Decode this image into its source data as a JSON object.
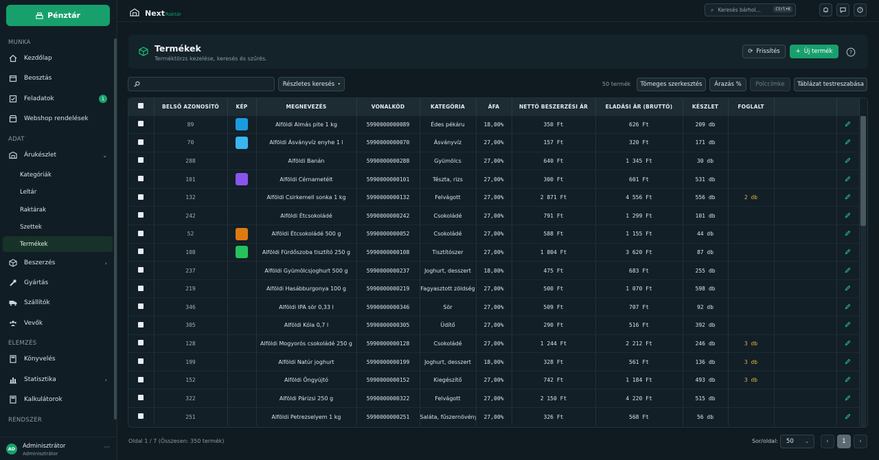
{
  "sidebar": {
    "kassza_label": "Pénztár",
    "sections": {
      "munka": "MUNKA",
      "adat": "ADAT",
      "elemzes": "ELEMZÉS",
      "rendszer": "RENDSZER"
    },
    "items": {
      "kezdolap": "Kezdőlap",
      "beosztas": "Beosztás",
      "feladatok": "Feladatok",
      "feladatok_badge": "1",
      "webshop": "Webshop rendelések",
      "arukeszlet": "Árukészlet",
      "kategoriak": "Kategóriák",
      "leltar": "Leltár",
      "raktarak": "Raktárak",
      "szettek": "Szettek",
      "termekek": "Termékek",
      "beszerzes": "Beszerzés",
      "gyartas": "Gyártás",
      "szallitok": "Szállítók",
      "vevok": "Vevők",
      "konyveles": "Könyvelés",
      "statisztika": "Statisztika",
      "kalkulatorok": "Kalkulátorok"
    },
    "user": {
      "name": "Adminisztrátor",
      "role": "Adminisztrátor",
      "initials": "AD"
    }
  },
  "topbar": {
    "logo_main": "Next",
    "logo_sub": "Raktár",
    "search_placeholder": "Keresés bárhol...",
    "search_shortcut": "Ctrl+K"
  },
  "page": {
    "title": "Termékek",
    "subtitle": "Terméktörzs kezelése, keresés és szűrés.",
    "refresh_label": "Frissítés",
    "new_label": "Új termék"
  },
  "filters": {
    "advanced_label": "Részletes keresés",
    "count_label": "50 termék",
    "bulk_edit": "Tömeges szerkesztés",
    "pricing": "Árazás %",
    "shelf_label": "Polccímke",
    "customize": "Táblázat testreszabása"
  },
  "table": {
    "headers": [
      "",
      "BELSŐ AZONOSÍTÓ",
      "KÉP",
      "MEGNEVEZÉS",
      "VONALKÓD",
      "KATEGÓRIA",
      "ÁFA",
      "NETTÓ BESZERZÉSI ÁR",
      "ELADÁSI ÁR (BRUTTÓ)",
      "KÉSZLET",
      "FOGLALT",
      ""
    ],
    "rows": [
      {
        "id": "89",
        "color": "#1a9be0",
        "name": "Alföldi Almás pite 1 kg",
        "barcode": "5990000000089",
        "category": "Édes pékáru",
        "vat": "18,00%",
        "net": "350 Ft",
        "gross": "626 Ft",
        "stock": "209 db",
        "reserved": ""
      },
      {
        "id": "70",
        "color": "#3bb5ef",
        "name": "Alföldi Ásványvíz enyhe 1 l",
        "barcode": "5990000000070",
        "category": "Ásványvíz",
        "vat": "27,00%",
        "net": "157 Ft",
        "gross": "320 Ft",
        "stock": "171 db",
        "reserved": ""
      },
      {
        "id": "288",
        "color": "",
        "name": "Alföldi Banán",
        "barcode": "5990000000288",
        "category": "Gyümölcs",
        "vat": "27,00%",
        "net": "640 Ft",
        "gross": "1 345 Ft",
        "stock": "30 db",
        "reserved": ""
      },
      {
        "id": "101",
        "color": "#8a55ee",
        "name": "Alföldi Cérnametélt",
        "barcode": "5990000000101",
        "category": "Tészta, rizs",
        "vat": "27,00%",
        "net": "300 Ft",
        "gross": "601 Ft",
        "stock": "531 db",
        "reserved": ""
      },
      {
        "id": "132",
        "color": "",
        "name": "Alföldi Csirkemell sonka 1 kg",
        "barcode": "5990000000132",
        "category": "Felvágott",
        "vat": "27,00%",
        "net": "2 871 Ft",
        "gross": "4 556 Ft",
        "stock": "556 db",
        "reserved": "2 db"
      },
      {
        "id": "242",
        "color": "",
        "name": "Alföldi Étcsokoládé",
        "barcode": "5990000000242",
        "category": "Csokoládé",
        "vat": "27,00%",
        "net": "791 Ft",
        "gross": "1 299 Ft",
        "stock": "101 db",
        "reserved": ""
      },
      {
        "id": "52",
        "color": "#df7a12",
        "name": "Alföldi Étcsokoládé 500 g",
        "barcode": "5990000000052",
        "category": "Csokoládé",
        "vat": "27,00%",
        "net": "588 Ft",
        "gross": "1 155 Ft",
        "stock": "44 db",
        "reserved": ""
      },
      {
        "id": "108",
        "color": "#25c25b",
        "name": "Alföldi Fürdőszoba tisztító 250 g",
        "barcode": "5990000000108",
        "category": "Tisztítószer",
        "vat": "27,00%",
        "net": "1 804 Ft",
        "gross": "3 620 Ft",
        "stock": "87 db",
        "reserved": ""
      },
      {
        "id": "237",
        "color": "",
        "name": "Alföldi Gyümölcsjoghurt 500 g",
        "barcode": "5990000000237",
        "category": "Joghurt, desszert",
        "vat": "18,00%",
        "net": "475 Ft",
        "gross": "683 Ft",
        "stock": "255 db",
        "reserved": ""
      },
      {
        "id": "219",
        "color": "",
        "name": "Alföldi Hasábburgonya 100 g",
        "barcode": "5990000000219",
        "category": "Fagyasztott zöldség",
        "vat": "27,00%",
        "net": "500 Ft",
        "gross": "1 070 Ft",
        "stock": "598 db",
        "reserved": ""
      },
      {
        "id": "346",
        "color": "",
        "name": "Alföldi IPA sör 0,33 l",
        "barcode": "5990000000346",
        "category": "Sör",
        "vat": "27,00%",
        "net": "509 Ft",
        "gross": "707 Ft",
        "stock": "92 db",
        "reserved": ""
      },
      {
        "id": "305",
        "color": "",
        "name": "Alföldi Kóla 0,7 l",
        "barcode": "5990000000305",
        "category": "Üdítő",
        "vat": "27,00%",
        "net": "290 Ft",
        "gross": "516 Ft",
        "stock": "392 db",
        "reserved": ""
      },
      {
        "id": "128",
        "color": "",
        "name": "Alföldi Mogyorós csokoládé 250 g",
        "barcode": "5990000000128",
        "category": "Csokoládé",
        "vat": "27,00%",
        "net": "1 244 Ft",
        "gross": "2 212 Ft",
        "stock": "246 db",
        "reserved": "3 db"
      },
      {
        "id": "199",
        "color": "",
        "name": "Alföldi Natúr joghurt",
        "barcode": "5990000000199",
        "category": "Joghurt, desszert",
        "vat": "18,00%",
        "net": "328 Ft",
        "gross": "561 Ft",
        "stock": "136 db",
        "reserved": "3 db"
      },
      {
        "id": "152",
        "color": "",
        "name": "Alföldi Öngyújtó",
        "barcode": "5990000000152",
        "category": "Kiegészítő",
        "vat": "27,00%",
        "net": "742 Ft",
        "gross": "1 184 Ft",
        "stock": "493 db",
        "reserved": "3 db"
      },
      {
        "id": "322",
        "color": "",
        "name": "Alföldi Párizsi 250 g",
        "barcode": "5990000000322",
        "category": "Felvágott",
        "vat": "27,00%",
        "net": "2 150 Ft",
        "gross": "4 220 Ft",
        "stock": "515 db",
        "reserved": ""
      },
      {
        "id": "251",
        "color": "",
        "name": "Alföldi Petrezselyem 1 kg",
        "barcode": "5990000000251",
        "category": "Saláta, fűszernövény",
        "vat": "27,00%",
        "net": "326 Ft",
        "gross": "568 Ft",
        "stock": "56 db",
        "reserved": ""
      }
    ]
  },
  "footer": {
    "page_info": "Oldal 1 / 7 (Összesen: 350 termék)",
    "per_page_label": "Sor/oldal:",
    "per_page_value": "50",
    "prev": "‹",
    "current": "1",
    "next": "›"
  }
}
